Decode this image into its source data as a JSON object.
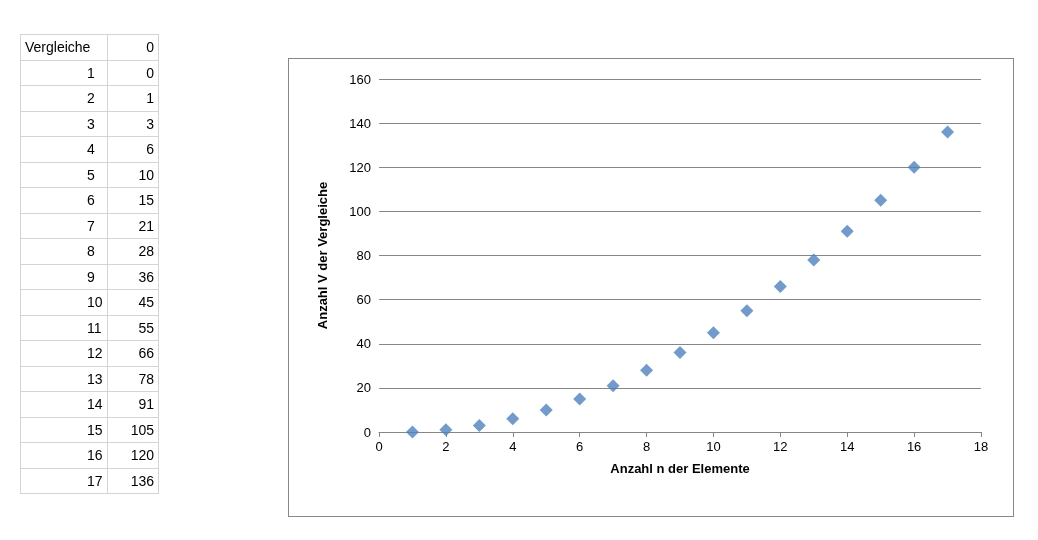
{
  "chart_data": [
    {
      "type": "other",
      "annotations": [
        "Vergleiche 0",
        "1 0",
        "2 1",
        "3 3",
        "4 6",
        "5 10",
        "6 15",
        "7 21",
        "8 28",
        "9 36",
        "10 45",
        "11 55",
        "12 66",
        "13 78",
        "14 91",
        "15 105",
        "16 120",
        "17 136"
      ]
    },
    {
      "type": "scatter",
      "xlabel": "Anzahl n der Elemente",
      "ylabel": "Anzahl V der Vergleiche",
      "x": [
        1,
        2,
        3,
        4,
        5,
        6,
        7,
        8,
        9,
        10,
        11,
        12,
        13,
        14,
        15,
        16,
        17
      ],
      "series": [
        {
          "color": "#4f81bd",
          "values": [
            0,
            1,
            3,
            6,
            10,
            15,
            21,
            28,
            36,
            45,
            55,
            66,
            78,
            91,
            105,
            120,
            136
          ]
        }
      ],
      "xlim": [
        0,
        18
      ],
      "xticks": [
        0,
        2,
        4,
        6,
        8,
        10,
        12,
        14,
        16,
        18
      ],
      "ylim": [
        0,
        160
      ],
      "yticks": [
        0,
        20,
        40,
        60,
        80,
        100,
        120,
        140,
        160
      ],
      "grid": "y",
      "marker": "diamond"
    }
  ]
}
